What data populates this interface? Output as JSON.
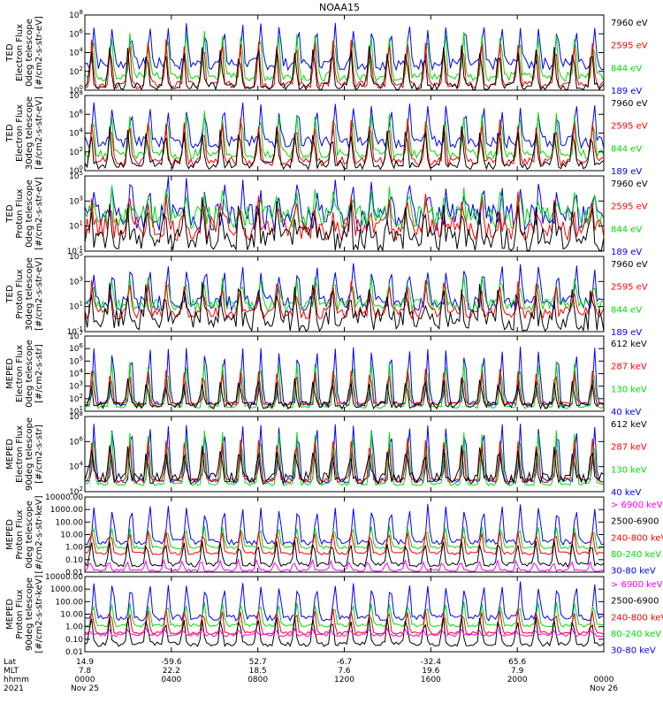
{
  "title": "NOAA15",
  "chart_data": [
    {
      "type": "line",
      "ylabel": [
        "TED",
        "Electron Flux",
        "0deg telescope",
        "[#/cm2-s-str-eV]"
      ],
      "yticks": [
        "10^0",
        "10^2",
        "10^4",
        "10^6",
        "10^8"
      ],
      "series": [
        {
          "name": "7960 eV",
          "color": "#000000",
          "base": 0.05,
          "peak": 0.55,
          "noise": 0.05
        },
        {
          "name": "2595 eV",
          "color": "#ff0000",
          "base": 0.07,
          "peak": 0.65,
          "noise": 0.05
        },
        {
          "name": "844 eV",
          "color": "#00dd00",
          "base": 0.18,
          "peak": 0.75,
          "noise": 0.06
        },
        {
          "name": "189 eV",
          "color": "#0000ff",
          "base": 0.35,
          "peak": 0.85,
          "noise": 0.08
        }
      ]
    },
    {
      "type": "line",
      "ylabel": [
        "TED",
        "Electron Flux",
        "30deg telescope",
        "[#/cm2-s-str-eV]"
      ],
      "yticks": [
        "10^0",
        "10^2",
        "10^4",
        "10^6",
        "10^8"
      ],
      "series": [
        {
          "name": "7960 eV",
          "color": "#000000",
          "base": 0.08,
          "peak": 0.55,
          "noise": 0.06
        },
        {
          "name": "2595 eV",
          "color": "#ff0000",
          "base": 0.12,
          "peak": 0.65,
          "noise": 0.06
        },
        {
          "name": "844 eV",
          "color": "#00dd00",
          "base": 0.22,
          "peak": 0.75,
          "noise": 0.06
        },
        {
          "name": "189 eV",
          "color": "#0000ff",
          "base": 0.38,
          "peak": 0.85,
          "noise": 0.08
        }
      ]
    },
    {
      "type": "line",
      "ylabel": [
        "TED",
        "Proton Flux",
        "0deg telescope",
        "[#/cm2-s-str-eV]"
      ],
      "yticks": [
        "10^-1",
        "10^1",
        "10^3",
        "10^5"
      ],
      "series": [
        {
          "name": "7960 eV",
          "color": "#000000",
          "base": 0.15,
          "peak": 0.55,
          "noise": 0.18
        },
        {
          "name": "2595 eV",
          "color": "#ff0000",
          "base": 0.3,
          "peak": 0.65,
          "noise": 0.16
        },
        {
          "name": "844 eV",
          "color": "#00dd00",
          "base": 0.45,
          "peak": 0.75,
          "noise": 0.16
        },
        {
          "name": "189 eV",
          "color": "#0000ff",
          "base": 0.45,
          "peak": 0.85,
          "noise": 0.18
        }
      ]
    },
    {
      "type": "line",
      "ylabel": [
        "TED",
        "Proton Flux",
        "30deg telescope",
        "[#/cm2-s-str-eV]"
      ],
      "yticks": [
        "10^-1",
        "10^1",
        "10^3",
        "10^5"
      ],
      "series": [
        {
          "name": "7960 eV",
          "color": "#000000",
          "base": 0.15,
          "peak": 0.55,
          "noise": 0.15
        },
        {
          "name": "2595 eV",
          "color": "#ff0000",
          "base": 0.25,
          "peak": 0.62,
          "noise": 0.08
        },
        {
          "name": "844 eV",
          "color": "#00dd00",
          "base": 0.35,
          "peak": 0.7,
          "noise": 0.08
        },
        {
          "name": "189 eV",
          "color": "#0000ff",
          "base": 0.38,
          "peak": 0.85,
          "noise": 0.1
        }
      ]
    },
    {
      "type": "line",
      "ylabel": [
        "MEPED",
        "Electron Flux",
        "0deg telescope",
        "[#/cm2-s-str]"
      ],
      "yticks": [
        "10^1",
        "10^2",
        "10^3",
        "10^4",
        "10^5",
        "10^6",
        "10^7"
      ],
      "series": [
        {
          "name": "612 keV",
          "color": "#000000",
          "base": 0.08,
          "peak": 0.4,
          "noise": 0.05
        },
        {
          "name": "287 keV",
          "color": "#ff0000",
          "base": 0.1,
          "peak": 0.55,
          "noise": 0.02
        },
        {
          "name": "130 keV",
          "color": "#00dd00",
          "base": 0.06,
          "peak": 0.65,
          "noise": 0.02
        },
        {
          "name": "40 keV",
          "color": "#0000ff",
          "base": 0.1,
          "peak": 0.85,
          "noise": 0.03
        }
      ]
    },
    {
      "type": "line",
      "ylabel": [
        "MEPED",
        "Electron Flux",
        "90deg telescope",
        "[#/cm2-s-str]"
      ],
      "yticks": [
        "10^2",
        "10^4",
        "10^6",
        "10^8"
      ],
      "series": [
        {
          "name": "612 keV",
          "color": "#000000",
          "base": 0.18,
          "peak": 0.55,
          "noise": 0.08
        },
        {
          "name": "287 keV",
          "color": "#ff0000",
          "base": 0.15,
          "peak": 0.7,
          "noise": 0.03
        },
        {
          "name": "130 keV",
          "color": "#00dd00",
          "base": 0.1,
          "peak": 0.8,
          "noise": 0.02
        },
        {
          "name": "40 keV",
          "color": "#0000ff",
          "base": 0.15,
          "peak": 0.9,
          "noise": 0.03
        }
      ]
    },
    {
      "type": "line",
      "ylabel": [
        "MEPED",
        "Proton Flux",
        "0deg telescope",
        "[#/cm2-s-str-keV]"
      ],
      "yticks": [
        "0.01",
        "0.10",
        "1.00",
        "10.00",
        "100.00",
        "1000.00",
        "10000.00"
      ],
      "series": [
        {
          "name": "> 6900 keV",
          "color": "#ff00ff",
          "base": 0.02,
          "peak": 0.15,
          "noise": 0.02
        },
        {
          "name": "2500-6900",
          "color": "#000000",
          "base": 0.1,
          "peak": 0.4,
          "noise": 0.03
        },
        {
          "name": "240-800 keV",
          "color": "#ff0000",
          "base": 0.25,
          "peak": 0.55,
          "noise": 0.02
        },
        {
          "name": "80-240 keV",
          "color": "#00dd00",
          "base": 0.33,
          "peak": 0.6,
          "noise": 0.02
        },
        {
          "name": "30-80 keV",
          "color": "#0000ff",
          "base": 0.4,
          "peak": 0.88,
          "noise": 0.04
        }
      ]
    },
    {
      "type": "line",
      "ylabel": [
        "MEPED",
        "Proton Flux",
        "90deg telescope",
        "[#/cm2-s-str-keV]"
      ],
      "yticks": [
        "0.01",
        "0.10",
        "1.00",
        "10.00",
        "100.00",
        "1000.00",
        "10000.00"
      ],
      "series": [
        {
          "name": "> 6900 keV",
          "color": "#ff00ff",
          "base": 0.22,
          "peak": 0.3,
          "noise": 0.02
        },
        {
          "name": "2500-6900",
          "color": "#000000",
          "base": 0.1,
          "peak": 0.45,
          "noise": 0.03
        },
        {
          "name": "240-800 keV",
          "color": "#ff0000",
          "base": 0.25,
          "peak": 0.55,
          "noise": 0.02
        },
        {
          "name": "80-240 keV",
          "color": "#00dd00",
          "base": 0.35,
          "peak": 0.65,
          "noise": 0.02
        },
        {
          "name": "30-80 keV",
          "color": "#0000ff",
          "base": 0.45,
          "peak": 0.9,
          "noise": 0.04
        }
      ]
    }
  ],
  "time_axis": {
    "row_labels": [
      "Lat",
      "MLT",
      "hhmm",
      "2021"
    ],
    "columns": [
      {
        "lat": "14.9",
        "mlt": "7.8",
        "hhmm": "0000",
        "date": "Nov 25"
      },
      {
        "lat": "-59.6",
        "mlt": "22.2",
        "hhmm": "0400",
        "date": ""
      },
      {
        "lat": "52.7",
        "mlt": "18.5",
        "hhmm": "0800",
        "date": ""
      },
      {
        "lat": "-6.7",
        "mlt": "7.6",
        "hhmm": "1200",
        "date": ""
      },
      {
        "lat": "-32.4",
        "mlt": "19.6",
        "hhmm": "1600",
        "date": ""
      },
      {
        "lat": "65.6",
        "mlt": "7.9",
        "hhmm": "2000",
        "date": ""
      },
      {
        "lat": "",
        "mlt": "",
        "hhmm": "0000",
        "date": "Nov 26"
      }
    ]
  }
}
